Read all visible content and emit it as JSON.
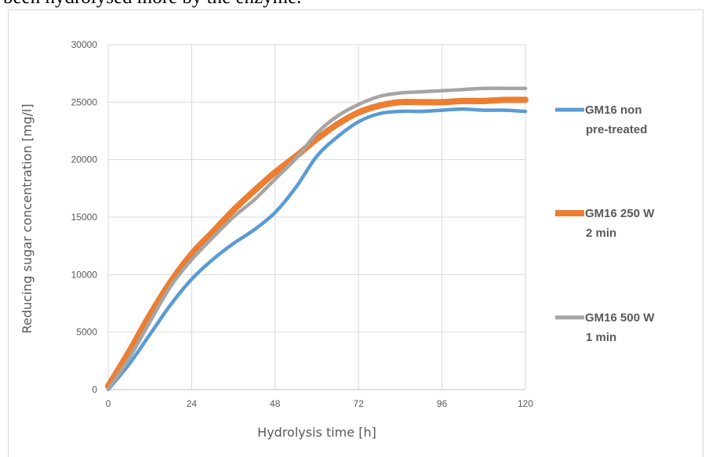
{
  "page": {
    "top_text": "been hydrolysed more by the enzyme."
  },
  "chart_data": {
    "type": "line",
    "xlabel": "Hydrolysis time [h]",
    "ylabel": "Reducing sugar concentration [mg/l]",
    "xlim": [
      0,
      120
    ],
    "ylim": [
      0,
      30000
    ],
    "x_ticks": [
      0,
      24,
      48,
      72,
      96,
      120
    ],
    "y_ticks": [
      0,
      5000,
      10000,
      15000,
      20000,
      25000,
      30000
    ],
    "grid": true,
    "legend_position": "right",
    "series": [
      {
        "name_lines": [
          "GM16 non",
          "pre-treated"
        ],
        "color": "#5b9bd5",
        "x": [
          0,
          6,
          12,
          18,
          24,
          30,
          36,
          42,
          48,
          54,
          60,
          66,
          72,
          78,
          84,
          90,
          96,
          102,
          108,
          114,
          120
        ],
        "y": [
          0,
          2200,
          4800,
          7400,
          9600,
          11300,
          12700,
          13900,
          15400,
          17600,
          20300,
          22000,
          23300,
          24000,
          24200,
          24200,
          24300,
          24400,
          24300,
          24300,
          24200
        ]
      },
      {
        "name_lines": [
          "GM16 250 W",
          "2 min"
        ],
        "color": "#ed7d31",
        "x": [
          0,
          6,
          12,
          18,
          24,
          30,
          36,
          42,
          48,
          54,
          60,
          66,
          72,
          78,
          84,
          90,
          96,
          102,
          108,
          114,
          120
        ],
        "y": [
          300,
          3300,
          6500,
          9400,
          11800,
          13700,
          15600,
          17300,
          18900,
          20300,
          21800,
          23100,
          24100,
          24700,
          25000,
          25000,
          25000,
          25100,
          25100,
          25200,
          25200
        ]
      },
      {
        "name_lines": [
          "GM16 500 W",
          "1 min"
        ],
        "color": "#a5a5a5",
        "x": [
          0,
          6,
          12,
          18,
          24,
          30,
          36,
          42,
          48,
          54,
          60,
          66,
          72,
          78,
          84,
          90,
          96,
          102,
          108,
          114,
          120
        ],
        "y": [
          0,
          2700,
          5900,
          9000,
          11300,
          13200,
          15000,
          16500,
          18300,
          20100,
          22300,
          23800,
          24800,
          25500,
          25800,
          25900,
          26000,
          26100,
          26200,
          26200,
          26200
        ]
      }
    ]
  }
}
